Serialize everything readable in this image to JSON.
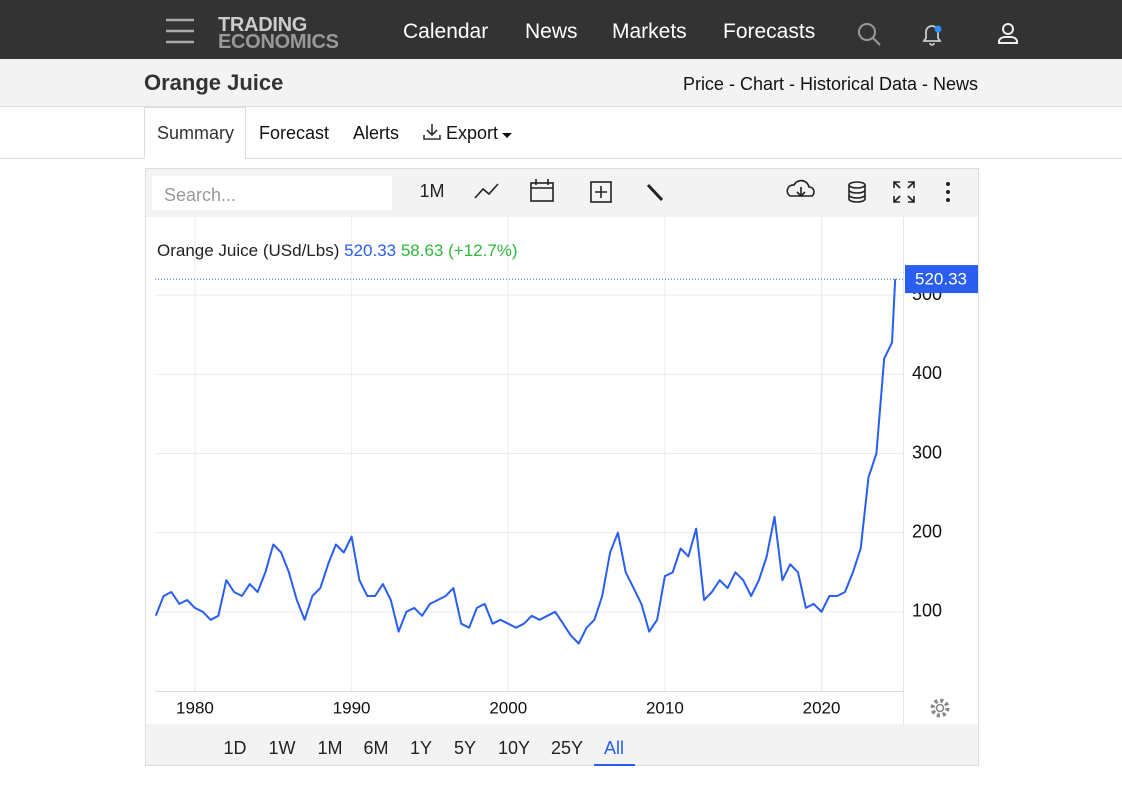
{
  "nav": {
    "logo": [
      "TRADING",
      "ECONOMICS"
    ],
    "links": [
      "Calendar",
      "News",
      "Markets",
      "Forecasts"
    ]
  },
  "header": {
    "title": "Orange Juice",
    "links": "Price - Chart - Historical Data - News"
  },
  "tabs": [
    "Summary",
    "Forecast",
    "Alerts",
    "Export"
  ],
  "toolbar": {
    "search_placeholder": "Search...",
    "interval": "1M"
  },
  "chart_data": {
    "type": "line",
    "series": [
      {
        "name": "Orange Juice (USd/Lbs)",
        "color": "#2a5ef0",
        "values": [
          95,
          120,
          125,
          110,
          115,
          105,
          100,
          90,
          95,
          140,
          125,
          120,
          135,
          125,
          150,
          185,
          175,
          150,
          115,
          90,
          120,
          130,
          160,
          185,
          175,
          195,
          140,
          120,
          120,
          135,
          115,
          75,
          100,
          105,
          95,
          110,
          115,
          120,
          130,
          85,
          80,
          105,
          110,
          85,
          90,
          85,
          80,
          85,
          95,
          90,
          95,
          100,
          85,
          70,
          60,
          80,
          90,
          120,
          175,
          200,
          150,
          130,
          110,
          75,
          90,
          145,
          150,
          180,
          170,
          205,
          115,
          125,
          140,
          130,
          150,
          140,
          120,
          140,
          170,
          220,
          140,
          160,
          150,
          105,
          110,
          100,
          120,
          120,
          125,
          150,
          180,
          270,
          300,
          420,
          440,
          520.33
        ]
      }
    ],
    "x": [
      1977.5,
      1978,
      1978.5,
      1979,
      1979.5,
      1980,
      1980.5,
      1981,
      1981.5,
      1982,
      1982.5,
      1983,
      1983.5,
      1984,
      1984.5,
      1985,
      1985.5,
      1986,
      1986.5,
      1987,
      1987.5,
      1988,
      1988.5,
      1989,
      1989.5,
      1990,
      1990.5,
      1991,
      1991.5,
      1992,
      1992.5,
      1993,
      1993.5,
      1994,
      1994.5,
      1995,
      1995.5,
      1996,
      1996.5,
      1997,
      1997.5,
      1998,
      1998.5,
      1999,
      1999.5,
      2000,
      2000.5,
      2001,
      2001.5,
      2002,
      2002.5,
      2003,
      2003.5,
      2004,
      2004.5,
      2005,
      2005.5,
      2006,
      2006.5,
      2007,
      2007.5,
      2008,
      2008.5,
      2009,
      2009.5,
      2010,
      2010.5,
      2011,
      2011.5,
      2012,
      2012.5,
      2013,
      2013.5,
      2014,
      2014.5,
      2015,
      2015.5,
      2016,
      2016.5,
      2017,
      2017.5,
      2018,
      2018.5,
      2019,
      2019.5,
      2020,
      2020.5,
      2021,
      2021.5,
      2022,
      2022.5,
      2023,
      2023.5,
      2024,
      2024.5,
      2024.7
    ],
    "last_price": 520.33,
    "change": 58.63,
    "change_pct": "(+12.7%)",
    "change_color": "#2eb83c",
    "xlim": [
      1977.45,
      2025.2
    ],
    "xticks": [
      1980,
      1990,
      2000,
      2010,
      2020
    ],
    "ylim": [
      0,
      600
    ],
    "yticks": [
      100,
      200,
      300,
      400,
      500
    ],
    "grid": true,
    "ranges": [
      "1D",
      "1W",
      "1M",
      "6M",
      "1Y",
      "5Y",
      "10Y",
      "25Y",
      "All"
    ]
  }
}
